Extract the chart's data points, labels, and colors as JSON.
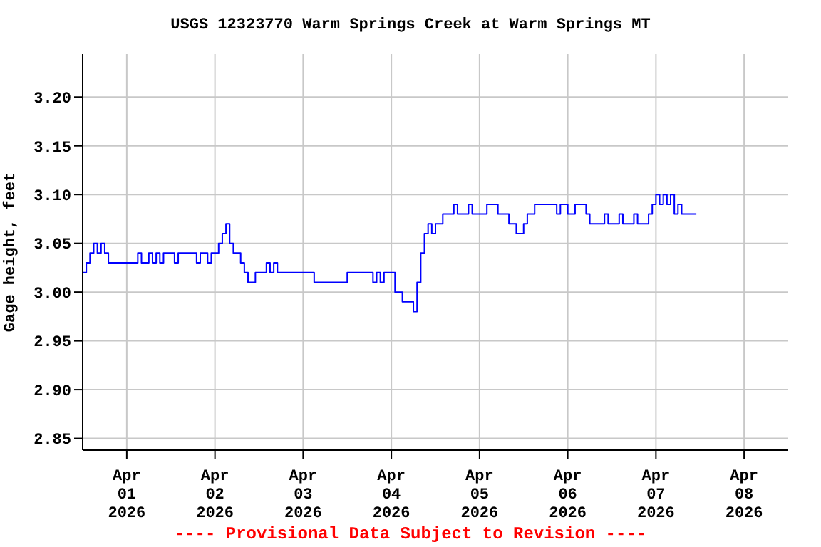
{
  "chart_data": {
    "type": "step",
    "title": "USGS 12323770 Warm Springs Creek at Warm Springs MT",
    "ylabel": "Gage height, feet",
    "annotations": [
      "---- Provisional Data Subject to Revision ----"
    ],
    "x": [
      "2026-03-31T12:00",
      "2026-03-31T13:00",
      "2026-03-31T14:00",
      "2026-03-31T15:00",
      "2026-03-31T16:00",
      "2026-03-31T17:00",
      "2026-03-31T18:00",
      "2026-03-31T19:00",
      "2026-04-01T03:00",
      "2026-04-01T04:00",
      "2026-04-01T06:00",
      "2026-04-01T07:00",
      "2026-04-01T08:00",
      "2026-04-01T09:00",
      "2026-04-01T10:00",
      "2026-04-01T13:00",
      "2026-04-01T14:00",
      "2026-04-01T19:00",
      "2026-04-01T20:00",
      "2026-04-01T22:00",
      "2026-04-01T23:00",
      "2026-04-02T01:00",
      "2026-04-02T02:00",
      "2026-04-02T03:00",
      "2026-04-02T04:00",
      "2026-04-02T05:00",
      "2026-04-02T07:00",
      "2026-04-02T08:00",
      "2026-04-02T09:00",
      "2026-04-02T11:00",
      "2026-04-02T14:00",
      "2026-04-02T15:00",
      "2026-04-02T16:00",
      "2026-04-02T17:00",
      "2026-04-03T03:00",
      "2026-04-03T12:00",
      "2026-04-03T19:00",
      "2026-04-03T20:00",
      "2026-04-03T21:00",
      "2026-04-03T22:00",
      "2026-04-04T01:00",
      "2026-04-04T03:00",
      "2026-04-04T06:00",
      "2026-04-04T07:00",
      "2026-04-04T08:00",
      "2026-04-04T09:00",
      "2026-04-04T10:00",
      "2026-04-04T11:00",
      "2026-04-04T12:00",
      "2026-04-04T14:00",
      "2026-04-04T17:00",
      "2026-04-04T18:00",
      "2026-04-04T21:00",
      "2026-04-04T22:00",
      "2026-04-05T02:00",
      "2026-04-05T05:00",
      "2026-04-05T08:00",
      "2026-04-05T10:00",
      "2026-04-05T12:00",
      "2026-04-05T13:00",
      "2026-04-05T15:00",
      "2026-04-05T21:00",
      "2026-04-05T22:00",
      "2026-04-06T00:00",
      "2026-04-06T02:00",
      "2026-04-06T05:00",
      "2026-04-06T06:00",
      "2026-04-06T10:00",
      "2026-04-06T11:00",
      "2026-04-06T14:00",
      "2026-04-06T15:00",
      "2026-04-06T18:00",
      "2026-04-06T19:00",
      "2026-04-06T22:00",
      "2026-04-06T23:00",
      "2026-04-07T00:00",
      "2026-04-07T01:00",
      "2026-04-07T02:00",
      "2026-04-07T03:00",
      "2026-04-07T04:00",
      "2026-04-07T05:00",
      "2026-04-07T06:00",
      "2026-04-07T07:00",
      "2026-04-07T11:00"
    ],
    "series": [
      {
        "color": "#0000ff",
        "values": [
          3.02,
          3.03,
          3.04,
          3.05,
          3.04,
          3.05,
          3.04,
          3.03,
          3.04,
          3.03,
          3.04,
          3.03,
          3.04,
          3.03,
          3.04,
          3.03,
          3.04,
          3.03,
          3.04,
          3.03,
          3.04,
          3.05,
          3.06,
          3.07,
          3.05,
          3.04,
          3.03,
          3.02,
          3.01,
          3.02,
          3.03,
          3.02,
          3.03,
          3.02,
          3.01,
          3.02,
          3.01,
          3.02,
          3.01,
          3.02,
          3.0,
          2.99,
          2.98,
          3.01,
          3.04,
          3.06,
          3.07,
          3.06,
          3.07,
          3.08,
          3.09,
          3.08,
          3.09,
          3.08,
          3.09,
          3.08,
          3.07,
          3.06,
          3.07,
          3.08,
          3.09,
          3.08,
          3.09,
          3.08,
          3.09,
          3.08,
          3.07,
          3.08,
          3.07,
          3.08,
          3.07,
          3.08,
          3.07,
          3.08,
          3.09,
          3.1,
          3.09,
          3.1,
          3.09,
          3.1,
          3.08,
          3.09,
          3.08,
          3.08
        ]
      }
    ],
    "xlim": [
      "2026-03-31T12:00",
      "2026-04-08T12:00"
    ],
    "xticks": [
      {
        "value": "2026-04-01",
        "label": "Apr\n01\n2026"
      },
      {
        "value": "2026-04-02",
        "label": "Apr\n02\n2026"
      },
      {
        "value": "2026-04-03",
        "label": "Apr\n03\n2026"
      },
      {
        "value": "2026-04-04",
        "label": "Apr\n04\n2026"
      },
      {
        "value": "2026-04-05",
        "label": "Apr\n05\n2026"
      },
      {
        "value": "2026-04-06",
        "label": "Apr\n06\n2026"
      },
      {
        "value": "2026-04-07",
        "label": "Apr\n07\n2026"
      },
      {
        "value": "2026-04-08",
        "label": "Apr\n08\n2026"
      }
    ],
    "ylim": [
      2.838,
      3.244
    ],
    "yticks": [
      {
        "value": 2.85,
        "label": "2.85"
      },
      {
        "value": 2.9,
        "label": "2.90"
      },
      {
        "value": 2.95,
        "label": "2.95"
      },
      {
        "value": 3.0,
        "label": "3.00"
      },
      {
        "value": 3.05,
        "label": "3.05"
      },
      {
        "value": 3.1,
        "label": "3.10"
      },
      {
        "value": 3.15,
        "label": "3.15"
      },
      {
        "value": 3.2,
        "label": "3.20"
      }
    ],
    "grid": true,
    "legend": false,
    "marker": "none",
    "line_style": "solid"
  }
}
